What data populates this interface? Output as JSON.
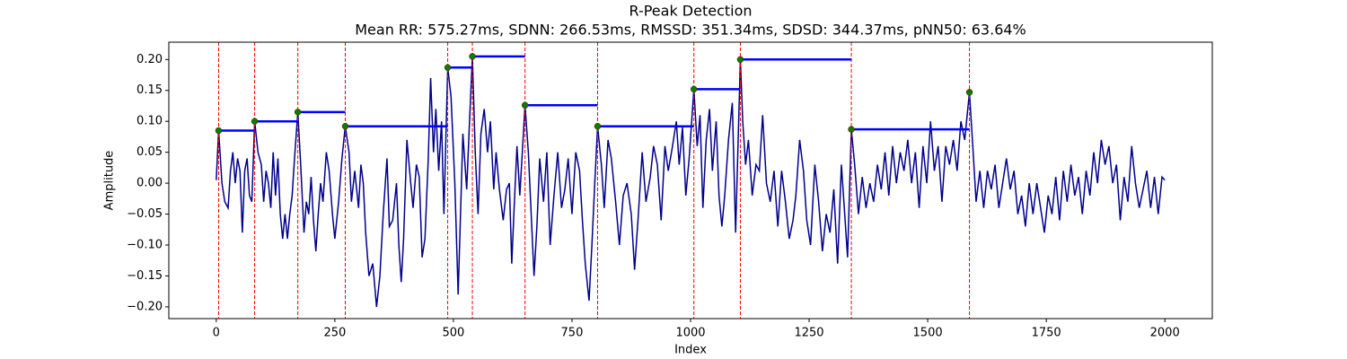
{
  "chart_data": {
    "type": "line",
    "title": "R-Peak Detection",
    "subtitle": "Mean RR: 575.27ms, SDNN: 266.53ms, RMSSD: 351.34ms, SDSD: 344.37ms, pNN50: 63.64%",
    "xlabel": "Index",
    "ylabel": "Amplitude",
    "xlim": [
      -100,
      2100
    ],
    "ylim": [
      -0.219,
      0.228
    ],
    "xticks": [
      0,
      250,
      500,
      750,
      1000,
      1250,
      1500,
      1750,
      2000
    ],
    "yticks": [
      {
        "value": -0.2,
        "label": "−0.20"
      },
      {
        "value": -0.15,
        "label": "−0.15"
      },
      {
        "value": -0.1,
        "label": "−0.10"
      },
      {
        "value": -0.05,
        "label": "−0.05"
      },
      {
        "value": 0,
        "label": "0.00"
      },
      {
        "value": 0.05,
        "label": "0.05"
      },
      {
        "value": 0.1,
        "label": "0.10"
      },
      {
        "value": 0.15,
        "label": "0.15"
      },
      {
        "value": 0.2,
        "label": "0.20"
      }
    ],
    "series": [
      {
        "color": "#00008b",
        "x": [
          0,
          5,
          12,
          18,
          25,
          30,
          35,
          40,
          45,
          50,
          55,
          60,
          65,
          70,
          75,
          81,
          88,
          95,
          100,
          105,
          110,
          115,
          120,
          125,
          130,
          135,
          140,
          145,
          150,
          155,
          160,
          165,
          172,
          178,
          185,
          190,
          195,
          200,
          205,
          210,
          215,
          220,
          225,
          232,
          238,
          245,
          250,
          258,
          265,
          272,
          280,
          285,
          292,
          300,
          305,
          310,
          315,
          322,
          330,
          338,
          345,
          352,
          360,
          365,
          372,
          380,
          385,
          390,
          395,
          402,
          410,
          415,
          422,
          428,
          434,
          440,
          447,
          452,
          458,
          463,
          469,
          475,
          480,
          488,
          495,
          503,
          510,
          515,
          520,
          528,
          534,
          540,
          546,
          552,
          558,
          565,
          572,
          578,
          585,
          590,
          597,
          605,
          612,
          618,
          623,
          628,
          634,
          640,
          651,
          658,
          664,
          670,
          676,
          682,
          690,
          697,
          704,
          712,
          720,
          728,
          735,
          742,
          750,
          758,
          766,
          772,
          778,
          786,
          792,
          798,
          804,
          812,
          818,
          826,
          833,
          842,
          850,
          858,
          866,
          875,
          882,
          890,
          898,
          906,
          915,
          922,
          930,
          938,
          946,
          953,
          962,
          970,
          976,
          983,
          990,
          997,
          1007,
          1014,
          1020,
          1026,
          1033,
          1040,
          1046,
          1054,
          1060,
          1066,
          1072,
          1080,
          1088,
          1095,
          1105,
          1110,
          1116,
          1122,
          1130,
          1138,
          1145,
          1152,
          1160,
          1168,
          1176,
          1184,
          1192,
          1200,
          1208,
          1216,
          1222,
          1230,
          1238,
          1245,
          1253,
          1262,
          1270,
          1278,
          1286,
          1294,
          1302,
          1310,
          1318,
          1325,
          1331,
          1339,
          1346,
          1354,
          1362,
          1370,
          1378,
          1386,
          1394,
          1402,
          1410,
          1418,
          1426,
          1434,
          1442,
          1450,
          1458,
          1466,
          1474,
          1482,
          1490,
          1498,
          1506,
          1514,
          1522,
          1530,
          1538,
          1546,
          1554,
          1562,
          1570,
          1578,
          1588,
          1595,
          1602,
          1610,
          1618,
          1626,
          1634,
          1642,
          1650,
          1658,
          1666,
          1674,
          1682,
          1690,
          1698,
          1706,
          1714,
          1722,
          1730,
          1738,
          1746,
          1754,
          1762,
          1770,
          1778,
          1786,
          1794,
          1802,
          1810,
          1818,
          1826,
          1834,
          1842,
          1850,
          1858,
          1866,
          1874,
          1882,
          1890,
          1898,
          1906,
          1914,
          1922,
          1930,
          1938,
          1946,
          1954,
          1962,
          1970,
          1978,
          1986,
          1994,
          2000
        ],
        "values": [
          0.005,
          0.085,
          0.0,
          -0.03,
          -0.04,
          0.02,
          0.05,
          0.0,
          0.04,
          0.02,
          -0.08,
          0.02,
          0.04,
          -0.02,
          -0.03,
          0.1,
          0.05,
          0.03,
          -0.03,
          0.02,
          0.0,
          -0.04,
          0.05,
          -0.02,
          0.04,
          -0.05,
          -0.09,
          -0.05,
          -0.09,
          -0.05,
          -0.02,
          0.04,
          0.115,
          0.03,
          -0.08,
          -0.03,
          -0.05,
          0.01,
          -0.06,
          -0.11,
          -0.05,
          0.0,
          -0.03,
          0.05,
          0.02,
          -0.05,
          -0.09,
          -0.03,
          0.04,
          0.092,
          0.05,
          -0.03,
          0.02,
          -0.04,
          0.03,
          0.0,
          -0.08,
          -0.15,
          -0.13,
          -0.2,
          -0.15,
          -0.05,
          0.04,
          -0.07,
          -0.06,
          0.0,
          -0.1,
          -0.16,
          -0.09,
          0.07,
          0.0,
          -0.04,
          0.03,
          0.01,
          -0.12,
          -0.09,
          0.04,
          0.17,
          0.05,
          0.12,
          0.02,
          0.1,
          -0.05,
          0.187,
          0.14,
          0.0,
          -0.18,
          -0.05,
          0.08,
          -0.01,
          0.1,
          0.205,
          0.05,
          -0.05,
          0.08,
          0.12,
          0.05,
          0.1,
          -0.01,
          0.05,
          -0.01,
          -0.06,
          -0.01,
          0.0,
          -0.13,
          -0.04,
          0.06,
          -0.02,
          0.126,
          0.05,
          -0.05,
          -0.15,
          -0.07,
          0.04,
          -0.03,
          0.05,
          -0.1,
          -0.02,
          0.05,
          -0.04,
          -0.01,
          0.04,
          -0.05,
          0.05,
          0.02,
          -0.06,
          -0.13,
          -0.19,
          -0.1,
          0.0,
          0.092,
          0.03,
          -0.04,
          0.07,
          0.04,
          -0.03,
          -0.1,
          -0.02,
          0.0,
          -0.05,
          -0.14,
          -0.05,
          0.05,
          -0.03,
          0.01,
          0.06,
          0.03,
          -0.06,
          0.06,
          0.02,
          0.06,
          0.1,
          0.03,
          0.09,
          -0.02,
          0.04,
          0.152,
          0.06,
          0.11,
          -0.04,
          0.07,
          0.12,
          0.02,
          0.1,
          -0.02,
          -0.07,
          -0.02,
          0.07,
          0.13,
          -0.08,
          0.2,
          0.1,
          0.03,
          0.07,
          -0.02,
          0.03,
          0.02,
          0.11,
          0.0,
          -0.03,
          0.02,
          -0.07,
          0.02,
          -0.03,
          -0.09,
          -0.06,
          -0.02,
          0.07,
          0.02,
          -0.06,
          -0.1,
          0.03,
          -0.03,
          -0.11,
          -0.05,
          -0.08,
          -0.01,
          -0.13,
          0.03,
          -0.05,
          -0.12,
          0.087,
          0.03,
          -0.05,
          0.01,
          -0.04,
          0.0,
          -0.03,
          0.03,
          -0.01,
          0.05,
          -0.02,
          0.06,
          0.0,
          0.05,
          0.02,
          0.07,
          0.0,
          0.05,
          -0.04,
          0.06,
          0.0,
          0.1,
          0.02,
          0.06,
          -0.03,
          0.06,
          0.03,
          0.07,
          0.02,
          0.1,
          0.07,
          0.147,
          0.06,
          -0.03,
          0.02,
          -0.04,
          0.02,
          -0.01,
          0.03,
          -0.04,
          0.0,
          0.04,
          -0.01,
          0.02,
          -0.05,
          -0.02,
          -0.07,
          0.0,
          -0.05,
          0.0,
          -0.04,
          -0.08,
          -0.02,
          -0.05,
          0.01,
          -0.06,
          0.02,
          -0.03,
          0.03,
          -0.02,
          0.01,
          -0.05,
          0.02,
          -0.02,
          0.05,
          0.0,
          0.07,
          0.03,
          0.06,
          0.0,
          0.03,
          -0.06,
          0.01,
          -0.03,
          0.06,
          0.0,
          -0.04,
          -0.01,
          0.02,
          -0.04,
          0.01,
          -0.05,
          0.01,
          0.005
        ]
      }
    ],
    "peaks": {
      "color": "#008000",
      "line_color": "#ff0000",
      "interval_color": "#0000ff",
      "x": [
        5,
        81,
        172,
        272,
        488,
        540,
        651,
        804,
        1007,
        1105,
        1339,
        1588
      ],
      "values": [
        0.085,
        0.1,
        0.115,
        0.092,
        0.187,
        0.205,
        0.126,
        0.092,
        0.152,
        0.2,
        0.087,
        0.147
      ]
    }
  }
}
